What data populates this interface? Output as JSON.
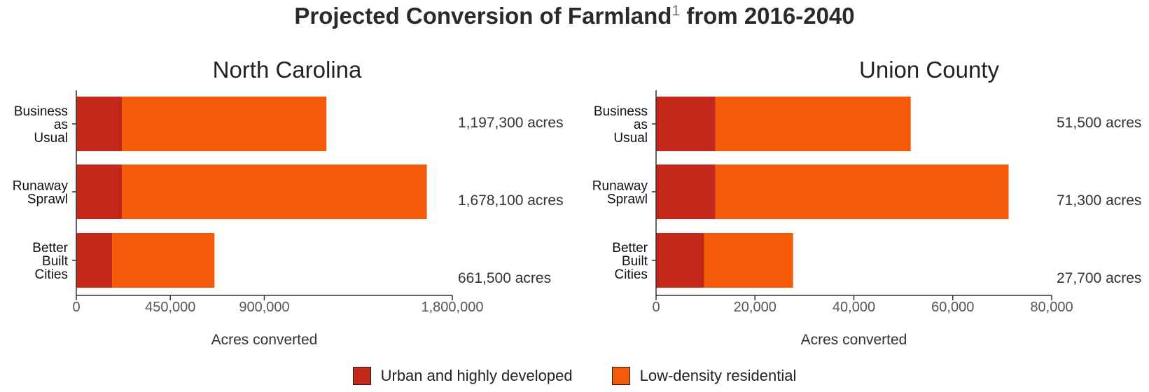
{
  "title": {
    "main_prefix": "Projected Conversion of Farmland",
    "footnote": "1",
    "main_suffix": " from 2016-2040"
  },
  "colors": {
    "urban": "#c3281a",
    "low_density": "#f7590a"
  },
  "legend": [
    {
      "label": "Urban and highly developed",
      "color": "#c3281a"
    },
    {
      "label": "Low-density residential",
      "color": "#f7590a"
    }
  ],
  "chart_data": [
    {
      "type": "bar",
      "orientation": "horizontal",
      "stacked": true,
      "title": "North Carolina",
      "xlabel": "Acres converted",
      "categories": [
        [
          "Business",
          "as",
          "Usual"
        ],
        [
          "Runaway",
          "Sprawl"
        ],
        [
          "Better",
          "Built",
          "Cities"
        ]
      ],
      "series": [
        {
          "name": "Urban and highly developed",
          "values": [
            218000,
            218000,
            172000
          ]
        },
        {
          "name": "Low-density residential",
          "values": [
            979300,
            1460100,
            489500
          ]
        }
      ],
      "totals_labels": [
        "1,197,300 acres",
        "1,678,100 acres",
        "661,500 acres"
      ],
      "xlim": [
        0,
        1800000
      ],
      "xticks": [
        0,
        450000,
        900000,
        1800000
      ],
      "xtick_labels": [
        "0",
        "450,000",
        "900,000",
        "1,800,000"
      ]
    },
    {
      "type": "bar",
      "orientation": "horizontal",
      "stacked": true,
      "title": "Union County",
      "xlabel": "Acres converted",
      "categories": [
        [
          "Business",
          "as",
          "Usual"
        ],
        [
          "Runaway",
          "Sprawl"
        ],
        [
          "Better",
          "Built",
          "Cities"
        ]
      ],
      "series": [
        {
          "name": "Urban and highly developed",
          "values": [
            12000,
            12000,
            9700
          ]
        },
        {
          "name": "Low-density residential",
          "values": [
            39500,
            59300,
            18000
          ]
        }
      ],
      "totals_labels": [
        "51,500 acres",
        "71,300 acres",
        "27,700 acres"
      ],
      "xlim": [
        0,
        80000
      ],
      "xticks": [
        0,
        20000,
        40000,
        60000,
        80000
      ],
      "xtick_labels": [
        "0",
        "20,000",
        "40,000",
        "60,000",
        "80,000"
      ]
    }
  ]
}
